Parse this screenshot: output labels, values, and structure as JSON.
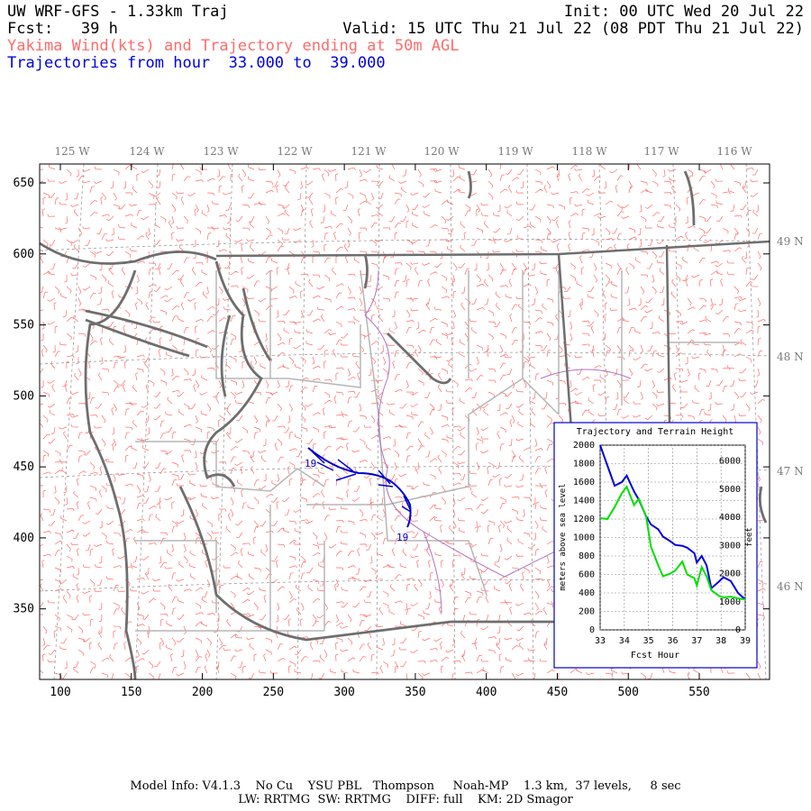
{
  "header": {
    "title_left": "UW WRF-GFS - 1.33km Traj",
    "title_right": "Init: 00 UTC Wed 20 Jul 22",
    "fcst_label": "Fcst:",
    "fcst_value": "39 h",
    "valid": "Valid: 15 UTC Thu 21 Jul 22 (08 PDT Thu 21 Jul 22)",
    "field_desc": "Yakima Wind(kts) and Trajectory ending at 50m AGL",
    "traj_desc": "Trajectories from hour  33.000 to  39.000"
  },
  "map": {
    "lon_labels": [
      "125 W",
      "124 W",
      "123 W",
      "122 W",
      "121 W",
      "120 W",
      "119 W",
      "118 W",
      "117 W",
      "116 W"
    ],
    "lat_labels": [
      "49 N",
      "48 N",
      "47 N",
      "46 N"
    ],
    "x_ticks": [
      100,
      150,
      200,
      250,
      300,
      350,
      400,
      450,
      500,
      550
    ],
    "y_ticks": [
      650,
      600,
      550,
      500,
      450,
      400,
      350
    ],
    "traj_label_start": "19",
    "traj_label_end": "19",
    "colors": {
      "wind_barb": "#ff6b6b",
      "coast": "#6e6e6e",
      "border": "#9a9a9a",
      "river": "#b070c0",
      "trajectory": "#0000cc"
    }
  },
  "inset": {
    "title": "Trajectory and Terrain Height",
    "ylabel_left": "meters above sea level",
    "ylabel_right": "feet",
    "xlabel": "Fcst Hour",
    "x_ticks": [
      "33",
      "34",
      "35",
      "36",
      "37",
      "38",
      "39"
    ],
    "y_left_ticks": [
      "0",
      "200",
      "400",
      "600",
      "800",
      "1000",
      "1200",
      "1400",
      "1600",
      "1800",
      "2000"
    ],
    "y_right_ticks": [
      "0",
      "1000",
      "2000",
      "3000",
      "4000",
      "5000",
      "6000"
    ]
  },
  "chart_data": {
    "type": "line",
    "xlabel": "Fcst Hour",
    "ylabel": "meters above sea level",
    "xlim": [
      33,
      39
    ],
    "ylim": [
      0,
      2000
    ],
    "x": [
      33.0,
      33.3,
      33.6,
      33.9,
      34.1,
      34.4,
      34.6,
      34.9,
      35.1,
      35.4,
      35.6,
      35.9,
      36.1,
      36.4,
      36.6,
      36.9,
      37.0,
      37.2,
      37.4,
      37.6,
      37.9,
      38.1,
      38.4,
      38.7,
      39.0
    ],
    "series": [
      {
        "name": "trajectory",
        "color": "#0000dd",
        "values": [
          2000,
          1780,
          1560,
          1600,
          1670,
          1500,
          1410,
          1230,
          1140,
          1090,
          1010,
          960,
          920,
          910,
          890,
          830,
          730,
          800,
          700,
          450,
          520,
          570,
          530,
          400,
          330
        ]
      },
      {
        "name": "terrain",
        "color": "#00e000",
        "values": [
          1210,
          1200,
          1330,
          1480,
          1550,
          1350,
          1420,
          1230,
          900,
          700,
          580,
          610,
          640,
          740,
          600,
          560,
          480,
          680,
          580,
          430,
          370,
          350,
          360,
          340,
          330
        ]
      }
    ]
  },
  "footer": {
    "line1": "Model Info: V4.1.3    No Cu    YSU PBL   Thompson     Noah-MP    1.3 km,  37 levels,     8 sec",
    "line2": "LW: RRTMG  SW: RRTMG    DIFF: full    KM: 2D Smagor"
  }
}
